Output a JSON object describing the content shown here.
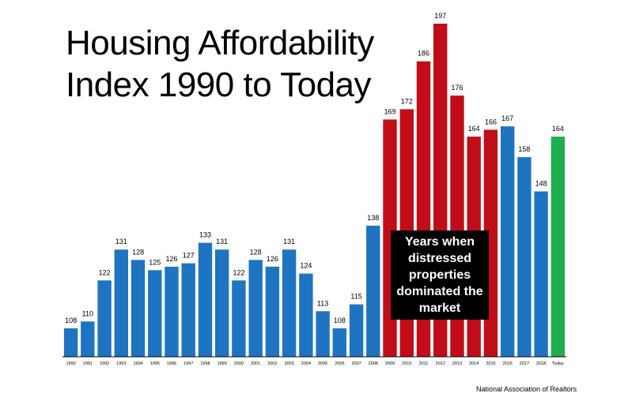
{
  "title_line1": "Housing Affordability",
  "title_line2": "Index 1990 to Today",
  "callout": "Years when distressed properties dominated the market",
  "source": "National Association of Realtors",
  "colors": {
    "normal": "#1f74c2",
    "distressed": "#c00d19",
    "today": "#1fae4e"
  },
  "chart_data": {
    "type": "bar",
    "title": "Housing Affordability Index 1990 to Today",
    "categories": [
      "1990",
      "1991",
      "1992",
      "1993",
      "1994",
      "1995",
      "1996",
      "1997",
      "1998",
      "1999",
      "2000",
      "2001",
      "2002",
      "2003",
      "2004",
      "2005",
      "2006",
      "2007",
      "2008",
      "2009",
      "2010",
      "2011",
      "2012",
      "2013",
      "2014",
      "2015",
      "2016",
      "2017",
      "2018",
      "Today"
    ],
    "values": [
      108,
      110,
      122,
      131,
      128,
      125,
      126,
      127,
      133,
      131,
      122,
      128,
      126,
      131,
      124,
      113,
      108,
      115,
      138,
      169,
      172,
      186,
      197,
      176,
      164,
      166,
      167,
      158,
      148,
      164
    ],
    "bar_groups": [
      "normal",
      "normal",
      "normal",
      "normal",
      "normal",
      "normal",
      "normal",
      "normal",
      "normal",
      "normal",
      "normal",
      "normal",
      "normal",
      "normal",
      "normal",
      "normal",
      "normal",
      "normal",
      "normal",
      "distressed",
      "distressed",
      "distressed",
      "distressed",
      "distressed",
      "distressed",
      "distressed",
      "normal",
      "normal",
      "normal",
      "today"
    ],
    "ylim": [
      90,
      200
    ],
    "grid": false,
    "legend": "none"
  }
}
